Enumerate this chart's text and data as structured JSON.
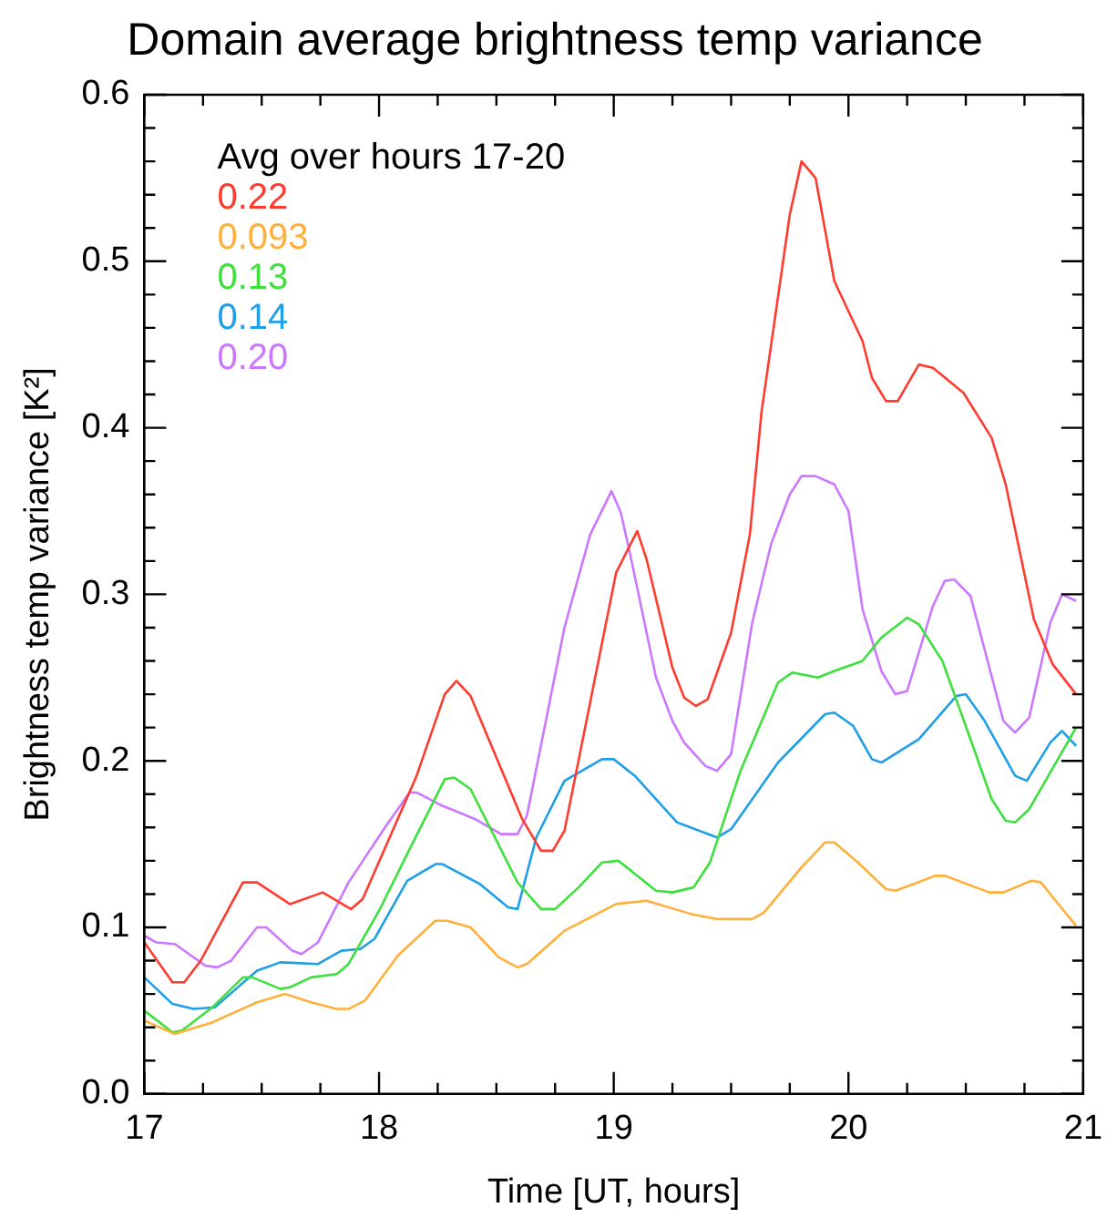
{
  "chart_data": {
    "type": "line",
    "title": "Domain average brightness temp variance",
    "xlabel": "Time [UT, hours]",
    "ylabel": "Brightness temp variance [K²]",
    "legend_title": "Avg over hours 17-20",
    "legend": "top left",
    "grid": false,
    "marker": "none",
    "line_style": "solid",
    "xlim": [
      17,
      21
    ],
    "xticks": [
      17,
      {
        "value": 17.25,
        "label": null
      },
      {
        "value": 17.5,
        "label": null
      },
      {
        "value": 17.75,
        "label": null
      },
      18,
      {
        "value": 18.25,
        "label": null
      },
      {
        "value": 18.5,
        "label": null
      },
      {
        "value": 18.75,
        "label": null
      },
      19,
      {
        "value": 19.25,
        "label": null
      },
      {
        "value": 19.5,
        "label": null
      },
      {
        "value": 19.75,
        "label": null
      },
      20,
      {
        "value": 20.25,
        "label": null
      },
      {
        "value": 20.5,
        "label": null
      },
      {
        "value": 20.75,
        "label": null
      },
      21
    ],
    "ylim": [
      0,
      0.6
    ],
    "yticks": [
      {
        "value": 0,
        "label": "0.0"
      },
      {
        "value": 0.02,
        "label": null
      },
      {
        "value": 0.04,
        "label": null
      },
      {
        "value": 0.06,
        "label": null
      },
      {
        "value": 0.08,
        "label": null
      },
      0.1,
      {
        "value": 0.12,
        "label": null
      },
      {
        "value": 0.14,
        "label": null
      },
      {
        "value": 0.16,
        "label": null
      },
      {
        "value": 0.18,
        "label": null
      },
      0.2,
      {
        "value": 0.22,
        "label": null
      },
      {
        "value": 0.24,
        "label": null
      },
      {
        "value": 0.26,
        "label": null
      },
      {
        "value": 0.28,
        "label": null
      },
      0.3,
      {
        "value": 0.32,
        "label": null
      },
      {
        "value": 0.34,
        "label": null
      },
      {
        "value": 0.36,
        "label": null
      },
      {
        "value": 0.38,
        "label": null
      },
      0.4,
      {
        "value": 0.42,
        "label": null
      },
      {
        "value": 0.44,
        "label": null
      },
      {
        "value": 0.46,
        "label": null
      },
      {
        "value": 0.48,
        "label": null
      },
      0.5,
      {
        "value": 0.52,
        "label": null
      },
      {
        "value": 0.54,
        "label": null
      },
      {
        "value": 0.56,
        "label": null
      },
      {
        "value": 0.58,
        "label": null
      },
      0.6
    ],
    "series": [
      {
        "name": "0.22",
        "color": "#ff3b30",
        "x": [
          17,
          17.12,
          17.17,
          17.24,
          17.42,
          17.48,
          17.62,
          17.76,
          17.88,
          17.93,
          18.16,
          18.28,
          18.33,
          18.39,
          18.61,
          18.69,
          18.74,
          18.79,
          19.01,
          19.1,
          19.14,
          19.25,
          19.3,
          19.35,
          19.4,
          19.5,
          19.58,
          19.63,
          19.75,
          19.8,
          19.86,
          19.94,
          20.06,
          20.1,
          20.16,
          20.21,
          20.3,
          20.36,
          20.49,
          20.61,
          20.67,
          20.79,
          20.87,
          20.97
        ],
        "values": [
          0.091,
          0.067,
          0.067,
          0.08,
          0.127,
          0.127,
          0.114,
          0.121,
          0.111,
          0.117,
          0.191,
          0.24,
          0.248,
          0.239,
          0.165,
          0.146,
          0.146,
          0.158,
          0.313,
          0.338,
          0.321,
          0.256,
          0.238,
          0.233,
          0.237,
          0.277,
          0.336,
          0.41,
          0.528,
          0.56,
          0.55,
          0.488,
          0.452,
          0.43,
          0.416,
          0.416,
          0.438,
          0.436,
          0.421,
          0.394,
          0.366,
          0.285,
          0.258,
          0.24
        ]
      },
      {
        "name": "0.093",
        "color": "#ffb03b",
        "x": [
          17,
          17.13,
          17.29,
          17.48,
          17.6,
          17.71,
          17.82,
          17.87,
          17.94,
          18.08,
          18.24,
          18.29,
          18.39,
          18.51,
          18.59,
          18.63,
          18.79,
          19.01,
          19.14,
          19.33,
          19.44,
          19.59,
          19.64,
          19.8,
          19.9,
          19.94,
          20.04,
          20.16,
          20.2,
          20.37,
          20.41,
          20.6,
          20.66,
          20.78,
          20.82,
          20.9,
          20.97
        ],
        "values": [
          0.044,
          0.036,
          0.043,
          0.055,
          0.06,
          0.055,
          0.051,
          0.051,
          0.056,
          0.083,
          0.104,
          0.104,
          0.1,
          0.082,
          0.076,
          0.078,
          0.098,
          0.114,
          0.116,
          0.108,
          0.105,
          0.105,
          0.109,
          0.136,
          0.151,
          0.151,
          0.139,
          0.123,
          0.122,
          0.131,
          0.131,
          0.121,
          0.121,
          0.128,
          0.127,
          0.113,
          0.101
        ]
      },
      {
        "name": "0.13",
        "color": "#3ee03e",
        "x": [
          17,
          17.12,
          17.16,
          17.29,
          17.42,
          17.46,
          17.58,
          17.62,
          17.71,
          17.82,
          17.87,
          18,
          18.13,
          18.28,
          18.32,
          18.39,
          18.59,
          18.69,
          18.75,
          18.85,
          18.95,
          19.02,
          19.18,
          19.25,
          19.34,
          19.41,
          19.54,
          19.7,
          19.76,
          19.87,
          19.94,
          20.06,
          20.14,
          20.25,
          20.3,
          20.4,
          20.52,
          20.61,
          20.67,
          20.71,
          20.77,
          20.97
        ],
        "values": [
          0.05,
          0.037,
          0.038,
          0.052,
          0.07,
          0.07,
          0.063,
          0.064,
          0.07,
          0.072,
          0.078,
          0.11,
          0.147,
          0.189,
          0.19,
          0.183,
          0.127,
          0.111,
          0.111,
          0.124,
          0.139,
          0.14,
          0.122,
          0.121,
          0.124,
          0.139,
          0.194,
          0.247,
          0.253,
          0.25,
          0.254,
          0.26,
          0.274,
          0.286,
          0.282,
          0.26,
          0.213,
          0.177,
          0.164,
          0.163,
          0.171,
          0.22
        ]
      },
      {
        "name": "0.14",
        "color": "#1e9fe8",
        "x": [
          17,
          17.12,
          17.21,
          17.3,
          17.48,
          17.58,
          17.74,
          17.84,
          17.92,
          17.98,
          18.12,
          18.24,
          18.27,
          18.43,
          18.55,
          18.59,
          18.67,
          18.79,
          18.95,
          19,
          19.09,
          19.27,
          19.44,
          19.5,
          19.7,
          19.9,
          19.94,
          20.02,
          20.1,
          20.14,
          20.3,
          20.46,
          20.5,
          20.58,
          20.71,
          20.76,
          20.86,
          20.91,
          20.97
        ],
        "values": [
          0.07,
          0.054,
          0.051,
          0.052,
          0.074,
          0.079,
          0.078,
          0.086,
          0.087,
          0.093,
          0.128,
          0.138,
          0.138,
          0.126,
          0.112,
          0.111,
          0.154,
          0.188,
          0.201,
          0.201,
          0.191,
          0.163,
          0.154,
          0.159,
          0.199,
          0.228,
          0.229,
          0.221,
          0.201,
          0.199,
          0.213,
          0.239,
          0.24,
          0.224,
          0.191,
          0.188,
          0.211,
          0.218,
          0.209
        ]
      },
      {
        "name": "0.20",
        "color": "#cc77ff",
        "x": [
          17,
          17.05,
          17.13,
          17.26,
          17.31,
          17.37,
          17.48,
          17.52,
          17.63,
          17.67,
          17.74,
          17.87,
          18.03,
          18.13,
          18.16,
          18.27,
          18.41,
          18.52,
          18.59,
          18.63,
          18.79,
          18.9,
          18.99,
          19.03,
          19.07,
          19.18,
          19.25,
          19.3,
          19.39,
          19.44,
          19.5,
          19.59,
          19.67,
          19.75,
          19.8,
          19.86,
          19.94,
          20,
          20.06,
          20.14,
          20.2,
          20.25,
          20.36,
          20.41,
          20.45,
          20.52,
          20.66,
          20.71,
          20.77,
          20.86,
          20.91,
          20.97
        ],
        "values": [
          0.095,
          0.091,
          0.09,
          0.077,
          0.076,
          0.08,
          0.1,
          0.1,
          0.086,
          0.084,
          0.091,
          0.127,
          0.161,
          0.181,
          0.181,
          0.173,
          0.165,
          0.156,
          0.156,
          0.167,
          0.28,
          0.336,
          0.362,
          0.349,
          0.324,
          0.25,
          0.224,
          0.211,
          0.197,
          0.194,
          0.204,
          0.283,
          0.33,
          0.36,
          0.371,
          0.371,
          0.366,
          0.35,
          0.291,
          0.254,
          0.24,
          0.242,
          0.293,
          0.308,
          0.309,
          0.299,
          0.224,
          0.217,
          0.226,
          0.283,
          0.3,
          0.296
        ]
      }
    ]
  }
}
